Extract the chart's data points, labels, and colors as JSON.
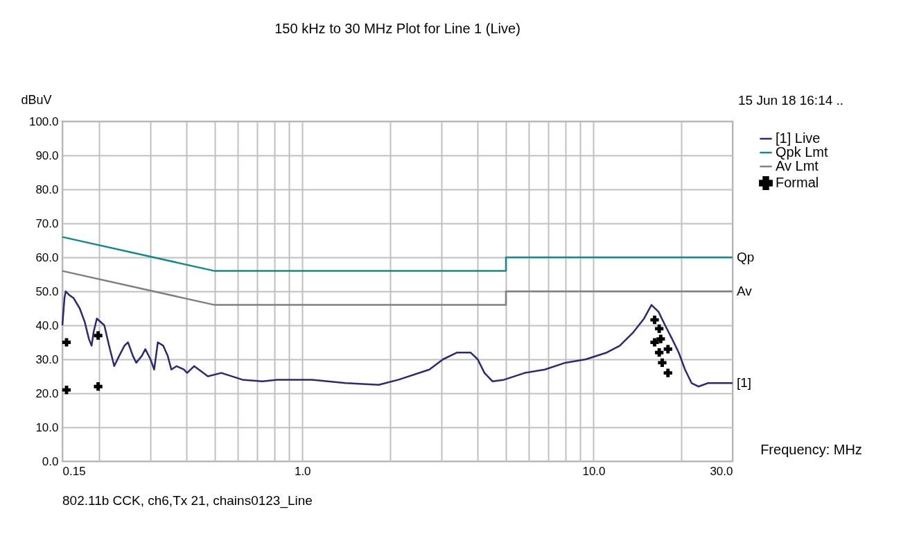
{
  "chart_data": {
    "type": "line",
    "title": "150 kHz to 30 MHz Plot for Line 1 (Live)",
    "xlabel": "Frequency: MHz",
    "ylabel": "dBuV",
    "log": "x",
    "grid": true,
    "legend": "top right",
    "xlim": [
      0.15,
      30
    ],
    "xticks": [
      {
        "value": 0.15,
        "label": "0.15"
      },
      {
        "value": 0.2,
        "label": null
      },
      {
        "value": 0.3,
        "label": null
      },
      {
        "value": 0.4,
        "label": null
      },
      {
        "value": 0.5,
        "label": null
      },
      {
        "value": 0.6,
        "label": null
      },
      {
        "value": 0.7,
        "label": null
      },
      {
        "value": 0.8,
        "label": null
      },
      {
        "value": 0.9,
        "label": null
      },
      {
        "value": 1,
        "label": "1.0"
      },
      {
        "value": 2,
        "label": null
      },
      {
        "value": 3,
        "label": null
      },
      {
        "value": 4,
        "label": null
      },
      {
        "value": 5,
        "label": null
      },
      {
        "value": 6,
        "label": null
      },
      {
        "value": 7,
        "label": null
      },
      {
        "value": 8,
        "label": null
      },
      {
        "value": 9,
        "label": null
      },
      {
        "value": 10,
        "label": "10.0"
      },
      {
        "value": 20,
        "label": null
      },
      {
        "value": 30,
        "label": "30.0"
      }
    ],
    "ylim": [
      0,
      100
    ],
    "yticks": [
      {
        "value": 0,
        "label": "0.0"
      },
      {
        "value": 10,
        "label": "10.0"
      },
      {
        "value": 20,
        "label": "20.0"
      },
      {
        "value": 30,
        "label": "30.0"
      },
      {
        "value": 40,
        "label": "40.0"
      },
      {
        "value": 50,
        "label": "50.0"
      },
      {
        "value": 60,
        "label": "60.0"
      },
      {
        "value": 70,
        "label": "70.0"
      },
      {
        "value": 80,
        "label": "80.0"
      },
      {
        "value": 90,
        "label": "90.0"
      },
      {
        "value": 100,
        "label": "100.0"
      }
    ],
    "series": [
      {
        "name": "[1] Live",
        "color": "#2a2a72",
        "x": [
          0.15,
          0.1525,
          0.154,
          0.158,
          0.164,
          0.172,
          0.179,
          0.185,
          0.189,
          0.192,
          0.197,
          0.209,
          0.217,
          0.226,
          0.235,
          0.245,
          0.252,
          0.262,
          0.269,
          0.281,
          0.289,
          0.301,
          0.31,
          0.319,
          0.333,
          0.345,
          0.355,
          0.37,
          0.392,
          0.402,
          0.425,
          0.474,
          0.527,
          0.623,
          0.73,
          0.82,
          1.08,
          1.41,
          1.83,
          2.14,
          2.73,
          3.04,
          3.4,
          3.78,
          4.0,
          4.22,
          4.5,
          4.93,
          5.8,
          6.8,
          8.0,
          9.4,
          11.1,
          12.3,
          13.7,
          14.9,
          15.8,
          16.7,
          17.6,
          18.6,
          19.6,
          20.6,
          21.7,
          22.9,
          24.7,
          30
        ],
        "values": [
          40,
          48,
          50,
          49,
          48,
          45,
          41,
          36,
          34,
          38,
          42,
          40,
          34,
          28,
          31,
          34,
          35,
          31,
          29,
          31,
          33,
          30,
          27,
          35,
          34,
          31,
          27,
          28,
          27,
          26,
          28,
          25,
          26,
          24,
          23.5,
          24,
          24,
          23,
          22.5,
          24,
          27,
          30,
          32,
          32,
          30,
          26,
          23.5,
          24,
          26,
          27,
          29,
          30,
          32,
          34,
          38,
          42,
          46,
          44,
          40,
          36,
          32,
          27,
          23,
          22,
          23,
          23
        ]
      },
      {
        "name": "Qpk Lmt",
        "color": "#138a8a",
        "x": [
          0.15,
          0.5,
          5,
          5,
          30
        ],
        "values": [
          66,
          56,
          56,
          60,
          60
        ]
      },
      {
        "name": "Av Lmt",
        "color": "#808080",
        "x": [
          0.15,
          0.5,
          5,
          5,
          30
        ],
        "values": [
          56,
          46,
          46,
          50,
          50
        ]
      },
      {
        "name": "Formal",
        "type": "scatter",
        "marker": "cross",
        "color": "#000000",
        "x": [
          0.155,
          0.155,
          0.199,
          0.199,
          16.2,
          16.8,
          17.0,
          16.2,
          16.8,
          18.0,
          17.2,
          18.0
        ],
        "values": [
          35,
          21,
          37,
          22,
          41.6,
          39,
          36,
          35,
          32,
          33,
          29,
          26
        ]
      }
    ],
    "annotations": [
      "15 Jun 18 16:14 ..",
      "802.11b CCK, ch6,Tx 21, chains0123_Line",
      "Qp",
      "Av",
      "[1]"
    ]
  }
}
